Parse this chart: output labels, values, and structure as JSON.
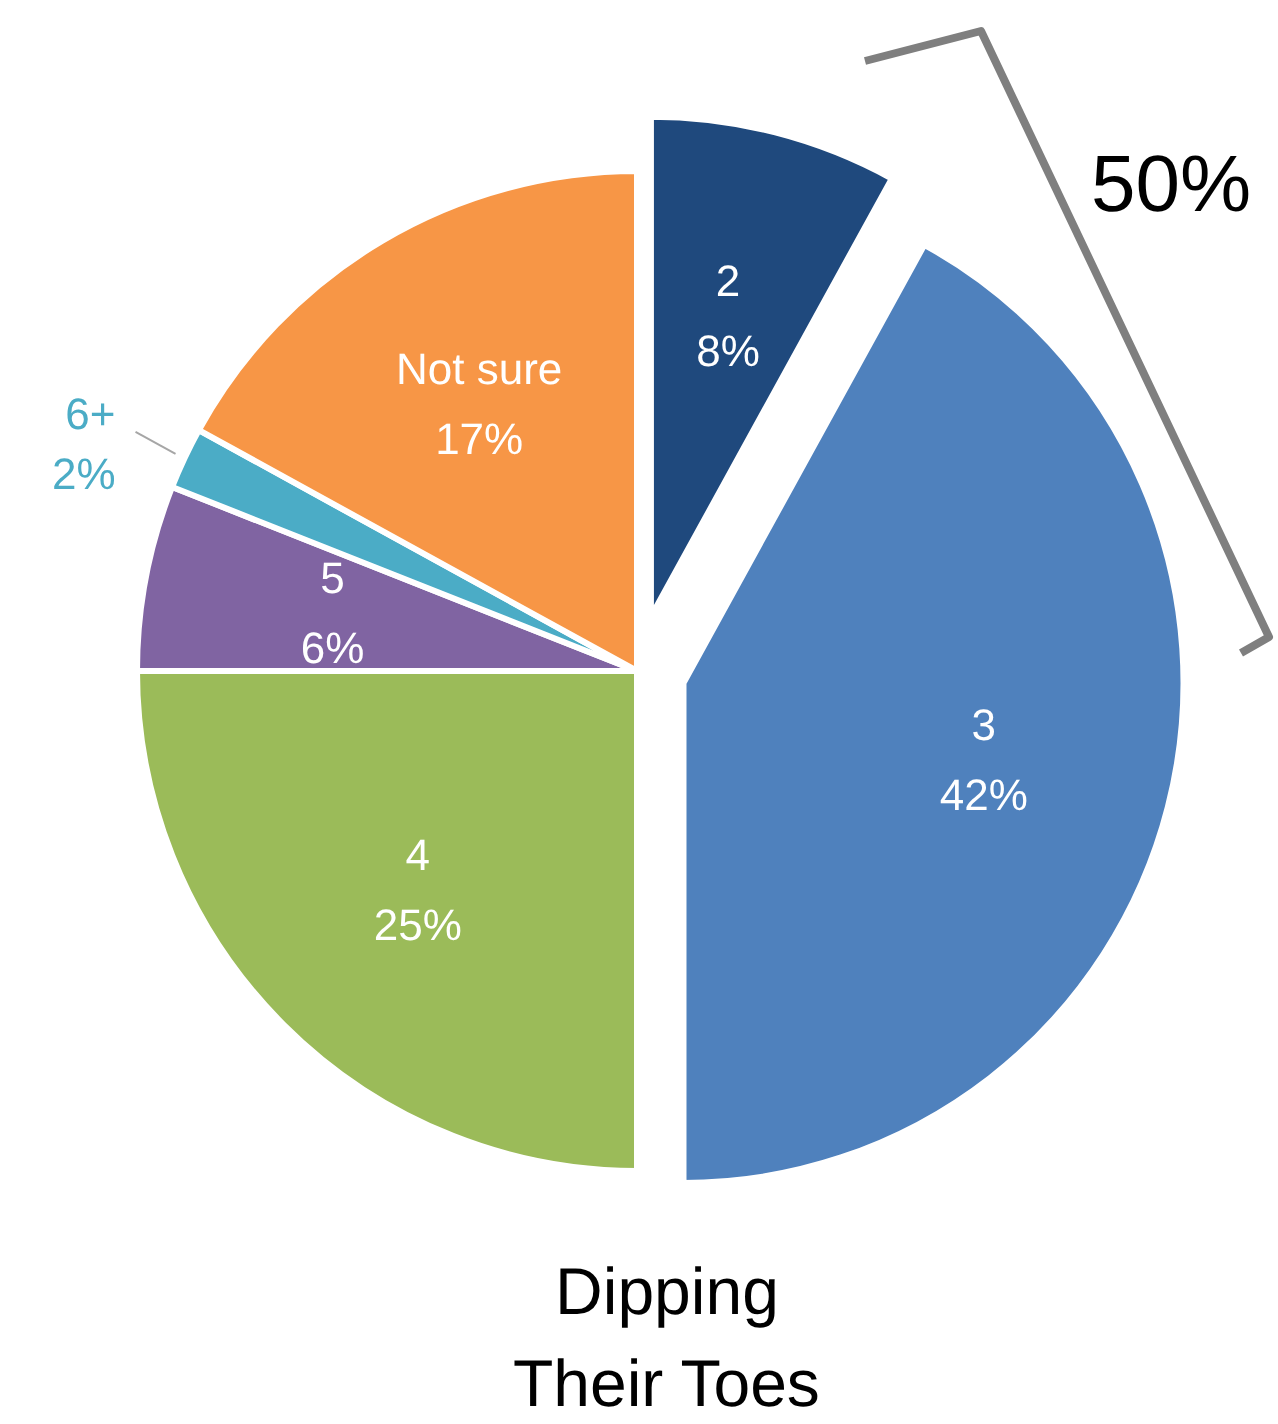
{
  "chart_data": {
    "type": "pie",
    "title": "Dipping\nTheir Toes",
    "categories": [
      "2",
      "3",
      "4",
      "5",
      "6+",
      "Not sure"
    ],
    "values": [
      8,
      42,
      25,
      6,
      2,
      17
    ],
    "colors": [
      "#1f497d",
      "#4f81bd",
      "#9bbb59",
      "#8064a2",
      "#4bacc6",
      "#f79646"
    ],
    "value_labels": [
      "8%",
      "42%",
      "25%",
      "6%",
      "2%",
      "17%"
    ],
    "annotations": [
      "50%"
    ]
  }
}
